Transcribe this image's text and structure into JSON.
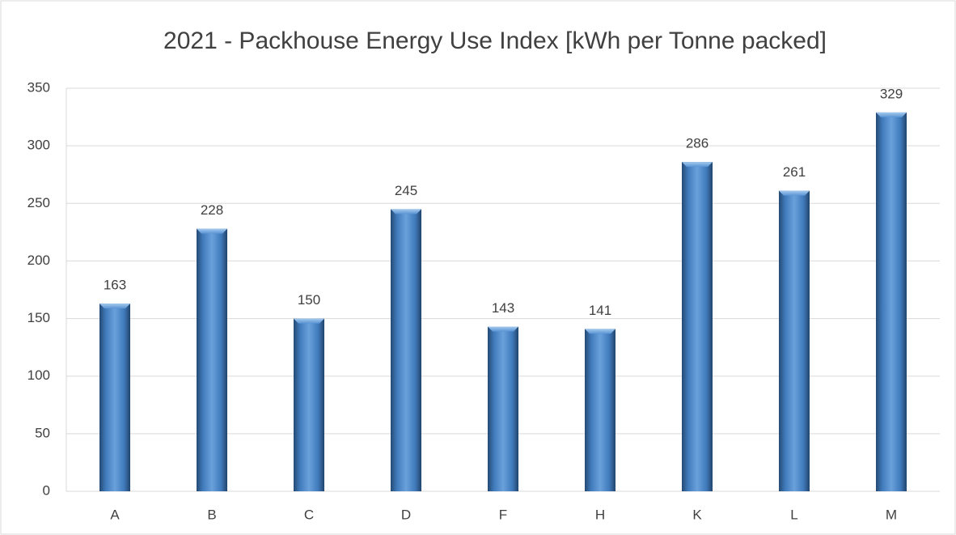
{
  "chart_data": {
    "type": "bar",
    "title": "2021 - Packhouse Energy Use Index [kWh per Tonne packed]",
    "categories": [
      "A",
      "B",
      "C",
      "D",
      "F",
      "H",
      "K",
      "L",
      "M"
    ],
    "values": [
      163,
      228,
      150,
      245,
      143,
      141,
      286,
      261,
      329
    ],
    "color": "#4a86c8",
    "ylim": [
      0,
      350
    ],
    "yticks": [
      0,
      50,
      100,
      150,
      200,
      250,
      300,
      350
    ],
    "grid": true,
    "data_labels": true
  }
}
